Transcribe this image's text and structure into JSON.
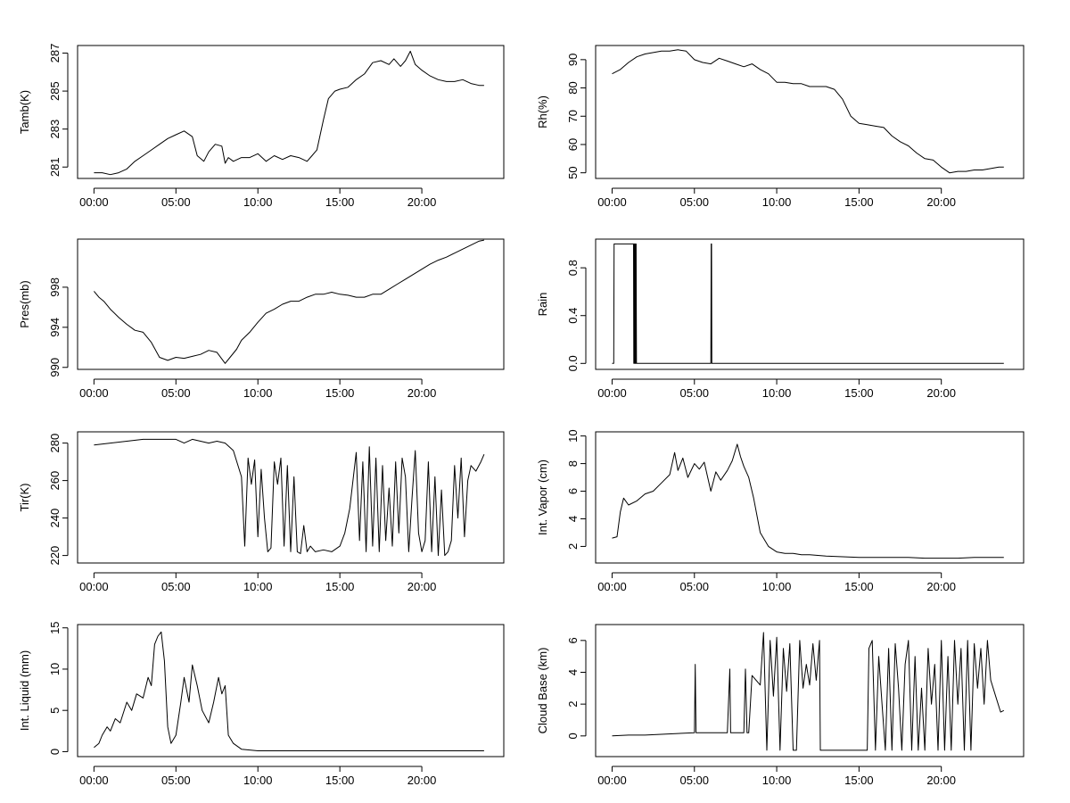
{
  "chart_data": [
    {
      "type": "line",
      "ylabel": "Tamb(K)",
      "x_tick_labels": [
        "00:00",
        "05:00",
        "10:00",
        "15:00",
        "20:00"
      ],
      "x_ticks_hours": [
        0,
        5,
        10,
        15,
        20
      ],
      "xlim_hours": [
        -1,
        25
      ],
      "ylim": [
        280.4,
        287.4
      ],
      "y_ticks": [
        281,
        283,
        285,
        287
      ],
      "series": [
        {
          "x": [
            0,
            0.5,
            1,
            1.5,
            2,
            2.5,
            3,
            3.5,
            4,
            4.5,
            5,
            5.5,
            6,
            6.3,
            6.7,
            7,
            7.4,
            7.8,
            8,
            8.2,
            8.5,
            9,
            9.5,
            10,
            10.5,
            11,
            11.5,
            12,
            12.5,
            13,
            13.3,
            13.6,
            14,
            14.3,
            14.7,
            15,
            15.5,
            16,
            16.5,
            17,
            17.5,
            18,
            18.3,
            18.7,
            19,
            19.3,
            19.6,
            20,
            20.5,
            21,
            21.5,
            22,
            22.5,
            23,
            23.5,
            23.8
          ],
          "y": [
            280.7,
            280.7,
            280.6,
            280.7,
            280.9,
            281.3,
            281.6,
            281.9,
            282.2,
            282.5,
            282.7,
            282.9,
            282.6,
            281.6,
            281.3,
            281.8,
            282.2,
            282.1,
            281.2,
            281.5,
            281.3,
            281.5,
            281.5,
            281.7,
            281.3,
            281.6,
            281.4,
            281.6,
            281.5,
            281.3,
            281.6,
            281.9,
            283.5,
            284.6,
            285.0,
            285.1,
            285.2,
            285.6,
            285.9,
            286.5,
            286.6,
            286.4,
            286.7,
            286.3,
            286.6,
            287.1,
            286.4,
            286.1,
            285.8,
            285.6,
            285.5,
            285.5,
            285.6,
            285.4,
            285.3,
            285.3
          ]
        }
      ]
    },
    {
      "type": "line",
      "ylabel": "Rh(%)",
      "x_tick_labels": [
        "00:00",
        "05:00",
        "10:00",
        "15:00",
        "20:00"
      ],
      "x_ticks_hours": [
        0,
        5,
        10,
        15,
        20
      ],
      "xlim_hours": [
        -1,
        25
      ],
      "ylim": [
        48,
        95
      ],
      "y_ticks": [
        50,
        60,
        70,
        80,
        90
      ],
      "series": [
        {
          "x": [
            0,
            0.5,
            1,
            1.5,
            2,
            2.5,
            3,
            3.5,
            4,
            4.5,
            5,
            5.5,
            6,
            6.5,
            7,
            7.5,
            8,
            8.5,
            9,
            9.5,
            10,
            10.5,
            11,
            11.5,
            12,
            12.5,
            13,
            13.5,
            14,
            14.5,
            15,
            15.5,
            16,
            16.5,
            17,
            17.5,
            18,
            18.5,
            19,
            19.5,
            20,
            20.5,
            21,
            21.5,
            22,
            22.5,
            23,
            23.5,
            23.8
          ],
          "y": [
            85,
            86.5,
            89,
            91,
            92,
            92.5,
            93,
            93,
            93.5,
            93,
            90,
            89,
            88.5,
            90.5,
            89.5,
            88.5,
            87.5,
            88.5,
            86.5,
            85,
            82,
            82,
            81.5,
            81.5,
            80.5,
            80.5,
            80.5,
            79.5,
            76,
            70,
            67.5,
            67,
            66.5,
            66,
            63,
            61,
            59.5,
            57,
            55,
            54.5,
            52,
            50,
            50.5,
            50.5,
            51,
            51,
            51.5,
            52,
            52
          ]
        }
      ]
    },
    {
      "type": "line",
      "ylabel": "Pres(mb)",
      "x_tick_labels": [
        "00:00",
        "05:00",
        "10:00",
        "15:00",
        "20:00"
      ],
      "x_ticks_hours": [
        0,
        5,
        10,
        15,
        20
      ],
      "xlim_hours": [
        -1,
        25
      ],
      "ylim": [
        989.8,
        1002.8
      ],
      "y_ticks": [
        990,
        994,
        998
      ],
      "series": [
        {
          "x": [
            0,
            0.3,
            0.6,
            1,
            1.5,
            2,
            2.5,
            3,
            3.5,
            4,
            4.5,
            5,
            5.5,
            6,
            6.5,
            7,
            7.5,
            8,
            8.3,
            8.7,
            9,
            9.5,
            10,
            10.5,
            11,
            11.5,
            12,
            12.5,
            13,
            13.5,
            14,
            14.5,
            15,
            15.5,
            16,
            16.5,
            17,
            17.5,
            18,
            18.5,
            19,
            19.5,
            20,
            20.5,
            21,
            21.5,
            22,
            22.5,
            23,
            23.5,
            23.8
          ],
          "y": [
            997.6,
            997,
            996.6,
            995.8,
            995,
            994.3,
            993.7,
            993.5,
            992.5,
            991,
            990.7,
            991,
            990.9,
            991.1,
            991.3,
            991.7,
            991.5,
            990.4,
            991,
            991.8,
            992.7,
            993.5,
            994.5,
            995.4,
            995.8,
            996.3,
            996.6,
            996.6,
            997,
            997.3,
            997.3,
            997.5,
            997.3,
            997.2,
            997,
            997,
            997.3,
            997.3,
            997.8,
            998.3,
            998.8,
            999.3,
            999.8,
            1000.3,
            1000.7,
            1001,
            1001.4,
            1001.8,
            1002.2,
            1002.6,
            1002.7
          ]
        }
      ]
    },
    {
      "type": "line",
      "ylabel": "Rain",
      "x_tick_labels": [
        "00:00",
        "05:00",
        "10:00",
        "15:00",
        "20:00"
      ],
      "x_ticks_hours": [
        0,
        5,
        10,
        15,
        20
      ],
      "xlim_hours": [
        -1,
        25
      ],
      "ylim": [
        -0.05,
        1.04
      ],
      "y_ticks": [
        0.0,
        0.4,
        0.8
      ],
      "y_tick_labels": [
        "0.0",
        "0.4",
        "0.8"
      ],
      "series": [
        {
          "x": [
            0,
            0.1,
            0.12,
            0.14,
            0.16,
            0.18,
            1.3,
            1.32,
            1.34,
            1.36,
            1.38,
            1.4,
            1.42,
            1.44,
            1.46,
            1.48,
            1.5,
            6.0,
            6.02,
            6.04,
            6.06,
            23.8
          ],
          "y": [
            0,
            0,
            1,
            1,
            1,
            1,
            1,
            0,
            1,
            0,
            1,
            0,
            1,
            0,
            1,
            0,
            0,
            0,
            1,
            1,
            0,
            0
          ]
        }
      ]
    },
    {
      "type": "line",
      "ylabel": "Tir(K)",
      "x_tick_labels": [
        "00:00",
        "05:00",
        "10:00",
        "15:00",
        "20:00"
      ],
      "x_ticks_hours": [
        0,
        5,
        10,
        15,
        20
      ],
      "xlim_hours": [
        -1,
        25
      ],
      "ylim": [
        216,
        286
      ],
      "y_ticks": [
        220,
        240,
        260,
        280
      ],
      "series": [
        {
          "x": [
            0,
            1,
            2,
            3,
            4,
            5,
            5.5,
            6,
            7,
            7.5,
            8,
            8.5,
            9,
            9.2,
            9.4,
            9.6,
            9.8,
            10,
            10.2,
            10.4,
            10.6,
            10.8,
            11,
            11.2,
            11.4,
            11.6,
            11.8,
            12,
            12.2,
            12.4,
            12.6,
            12.8,
            13,
            13.2,
            13.5,
            14,
            14.5,
            15,
            15.3,
            15.6,
            16,
            16.2,
            16.4,
            16.6,
            16.8,
            17,
            17.2,
            17.4,
            17.6,
            17.8,
            18,
            18.2,
            18.4,
            18.6,
            18.8,
            19,
            19.2,
            19.4,
            19.6,
            19.8,
            20,
            20.2,
            20.4,
            20.6,
            20.8,
            21,
            21.2,
            21.4,
            21.6,
            21.8,
            22,
            22.2,
            22.4,
            22.6,
            22.8,
            23,
            23.3,
            23.6,
            23.8
          ],
          "y": [
            279,
            280,
            281,
            282,
            282,
            282,
            280,
            282,
            280,
            281,
            280,
            276,
            262,
            225,
            272,
            258,
            271,
            230,
            266,
            240,
            222,
            224,
            270,
            258,
            272,
            225,
            268,
            222,
            262,
            222,
            221,
            236,
            222,
            225,
            222,
            223,
            222,
            225,
            232,
            245,
            275,
            228,
            270,
            222,
            278,
            225,
            272,
            222,
            268,
            228,
            256,
            225,
            270,
            232,
            272,
            262,
            222,
            250,
            276,
            232,
            222,
            228,
            270,
            222,
            262,
            220,
            255,
            220,
            222,
            228,
            268,
            240,
            272,
            230,
            260,
            268,
            265,
            270,
            274
          ]
        }
      ]
    },
    {
      "type": "line",
      "ylabel": "Int. Vapor (cm)",
      "x_tick_labels": [
        "00:00",
        "05:00",
        "10:00",
        "15:00",
        "20:00"
      ],
      "x_ticks_hours": [
        0,
        5,
        10,
        15,
        20
      ],
      "xlim_hours": [
        -1,
        25
      ],
      "ylim": [
        0.8,
        10.3
      ],
      "y_ticks": [
        2,
        4,
        6,
        8,
        10
      ],
      "series": [
        {
          "x": [
            0,
            0.3,
            0.5,
            0.7,
            1,
            1.5,
            2,
            2.5,
            3,
            3.5,
            3.8,
            4,
            4.3,
            4.6,
            5,
            5.3,
            5.6,
            6,
            6.3,
            6.6,
            7,
            7.3,
            7.6,
            7.8,
            8,
            8.3,
            8.6,
            9,
            9.5,
            10,
            10.5,
            11,
            11.5,
            12,
            13,
            14,
            15,
            16,
            17,
            18,
            19,
            20,
            21,
            22,
            23,
            23.8
          ],
          "y": [
            2.6,
            2.7,
            4.5,
            5.5,
            5.0,
            5.3,
            5.8,
            6.0,
            6.6,
            7.2,
            8.8,
            7.5,
            8.4,
            7.0,
            8.0,
            7.6,
            8.1,
            6.0,
            7.4,
            6.8,
            7.5,
            8.2,
            9.4,
            8.5,
            7.8,
            7.0,
            5.5,
            3.0,
            2.0,
            1.6,
            1.5,
            1.5,
            1.4,
            1.4,
            1.3,
            1.25,
            1.2,
            1.2,
            1.2,
            1.2,
            1.15,
            1.15,
            1.15,
            1.2,
            1.2,
            1.2
          ]
        }
      ]
    },
    {
      "type": "line",
      "ylabel": "Int. Liquid (mm)",
      "x_tick_labels": [
        "00:00",
        "05:00",
        "10:00",
        "15:00",
        "20:00"
      ],
      "x_ticks_hours": [
        0,
        5,
        10,
        15,
        20
      ],
      "xlim_hours": [
        -1,
        25
      ],
      "ylim": [
        -0.6,
        15.4
      ],
      "y_ticks": [
        0,
        5,
        10,
        15
      ],
      "series": [
        {
          "x": [
            0,
            0.3,
            0.5,
            0.8,
            1,
            1.3,
            1.6,
            2,
            2.3,
            2.6,
            3,
            3.3,
            3.5,
            3.7,
            3.9,
            4.1,
            4.3,
            4.5,
            4.7,
            5,
            5.3,
            5.5,
            5.8,
            6,
            6.3,
            6.6,
            7,
            7.3,
            7.6,
            7.8,
            8,
            8.2,
            8.5,
            9,
            9.5,
            10,
            11,
            12,
            13,
            14,
            15,
            16,
            17,
            18,
            19,
            20,
            21,
            22,
            23,
            23.8
          ],
          "y": [
            0.5,
            1,
            2,
            3,
            2.5,
            4,
            3.5,
            6,
            5,
            7,
            6.5,
            9,
            8,
            13,
            14,
            14.5,
            11,
            3,
            1,
            2,
            6,
            9,
            6,
            10.5,
            8,
            5,
            3.5,
            6,
            9,
            7,
            8,
            2,
            1,
            0.3,
            0.2,
            0.1,
            0.1,
            0.1,
            0.1,
            0.1,
            0.1,
            0.1,
            0.1,
            0.1,
            0.1,
            0.1,
            0.1,
            0.1,
            0.1,
            0.1
          ]
        }
      ]
    },
    {
      "type": "line",
      "ylabel": "Cloud Base (km)",
      "x_tick_labels": [
        "00:00",
        "05:00",
        "10:00",
        "15:00",
        "20:00"
      ],
      "x_ticks_hours": [
        0,
        5,
        10,
        15,
        20
      ],
      "xlim_hours": [
        -1,
        25
      ],
      "ylim": [
        -1.3,
        7.0
      ],
      "y_ticks": [
        0,
        2,
        4,
        6
      ],
      "series": [
        {
          "x": [
            0,
            1,
            2,
            3,
            4,
            5,
            5.05,
            5.1,
            5.2,
            6,
            7,
            7.15,
            7.2,
            7.3,
            8,
            8.1,
            8.2,
            8.3,
            8.5,
            9,
            9.2,
            9.4,
            9.6,
            9.8,
            10,
            10.2,
            10.4,
            10.6,
            10.8,
            11,
            11.2,
            11.4,
            11.6,
            11.8,
            12,
            12.2,
            12.4,
            12.6,
            12.65,
            15.5,
            15.6,
            15.8,
            16,
            16.2,
            16.4,
            16.6,
            16.8,
            17,
            17.2,
            17.4,
            17.6,
            17.8,
            18,
            18.2,
            18.4,
            18.6,
            18.8,
            19,
            19.2,
            19.4,
            19.6,
            19.8,
            20,
            20.2,
            20.4,
            20.6,
            20.8,
            21,
            21.2,
            21.4,
            21.6,
            21.8,
            22,
            22.2,
            22.4,
            22.6,
            22.8,
            23,
            23.3,
            23.6,
            23.8
          ],
          "y": [
            0,
            0.05,
            0.05,
            0.1,
            0.15,
            0.2,
            4.5,
            0.2,
            0.2,
            0.2,
            0.2,
            4.2,
            0.2,
            0.2,
            0.2,
            4.2,
            0.2,
            0.2,
            3.8,
            3.2,
            6.5,
            -0.9,
            6,
            2.5,
            6.2,
            -0.9,
            5.5,
            2.8,
            5.8,
            -0.9,
            -0.9,
            6,
            3,
            4.5,
            3.2,
            5.8,
            3.5,
            6,
            -0.9,
            -0.9,
            5.5,
            6,
            -0.9,
            5,
            2,
            -0.9,
            5.5,
            -0.9,
            5.8,
            3,
            -0.9,
            4.5,
            6,
            -0.9,
            5,
            -0.9,
            3,
            -0.9,
            5.5,
            2,
            4.5,
            -0.9,
            6,
            -0.9,
            5,
            -0.9,
            6,
            2,
            5.5,
            -0.9,
            6,
            -0.9,
            5.8,
            3,
            5.5,
            2,
            6,
            3.5,
            2.5,
            1.5,
            1.6
          ]
        }
      ]
    }
  ]
}
